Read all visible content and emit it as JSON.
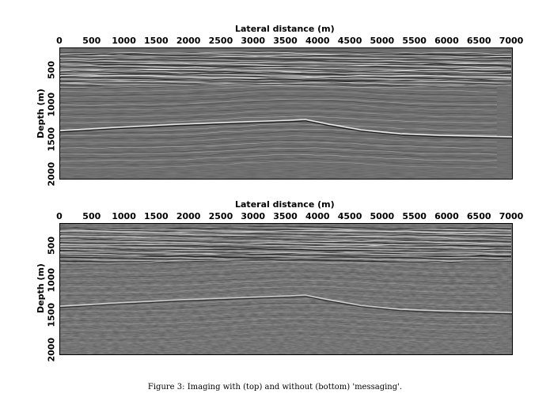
{
  "figure": {
    "caption": "Figure 3: Imaging with (top) and without (bottom) 'messaging'."
  },
  "panels": [
    {
      "id": "top",
      "x_axis_label": "Lateral distance (m)",
      "y_axis_label": "Depth (m)",
      "x_ticks": [
        "0",
        "500",
        "1000",
        "1500",
        "2000",
        "2500",
        "3000",
        "3500",
        "4000",
        "4500",
        "5000",
        "5500",
        "6000",
        "6500",
        "7000"
      ],
      "y_ticks": [
        "500",
        "1000",
        "1500",
        "2000"
      ]
    },
    {
      "id": "bottom",
      "x_axis_label": "Lateral distance (m)",
      "y_axis_label": "Depth (m)",
      "x_ticks": [
        "0",
        "500",
        "1000",
        "1500",
        "2000",
        "2500",
        "3000",
        "3500",
        "4000",
        "4500",
        "5000",
        "5500",
        "6000",
        "6500",
        "7000"
      ],
      "y_ticks": [
        "500",
        "1000",
        "1500",
        "2000"
      ]
    }
  ]
}
